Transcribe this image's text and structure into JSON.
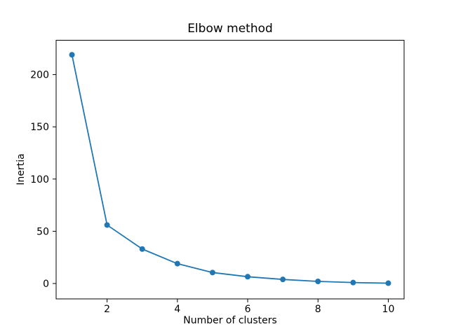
{
  "figure": {
    "title": "Elbow method",
    "xlabel": "Number of clusters",
    "ylabel": "Inertia"
  },
  "chart_data": {
    "type": "line",
    "title": "Elbow method",
    "xlabel": "Number of clusters",
    "ylabel": "Inertia",
    "x": [
      1,
      2,
      3,
      4,
      5,
      6,
      7,
      8,
      9,
      10
    ],
    "y": [
      219,
      56,
      33,
      19,
      10.5,
      6.5,
      3.9,
      2.0,
      0.9,
      0.3
    ],
    "x_ticks": [
      2,
      4,
      6,
      8,
      10
    ],
    "y_ticks": [
      0,
      50,
      100,
      150,
      200
    ],
    "xlim": [
      0.55,
      10.45
    ],
    "ylim": [
      -14.75,
      232.9
    ],
    "line_color": "#1f77b4",
    "marker": "circle",
    "grid": false,
    "legend": "none",
    "background_color": "#ffffff",
    "spine_color": "#000000"
  }
}
